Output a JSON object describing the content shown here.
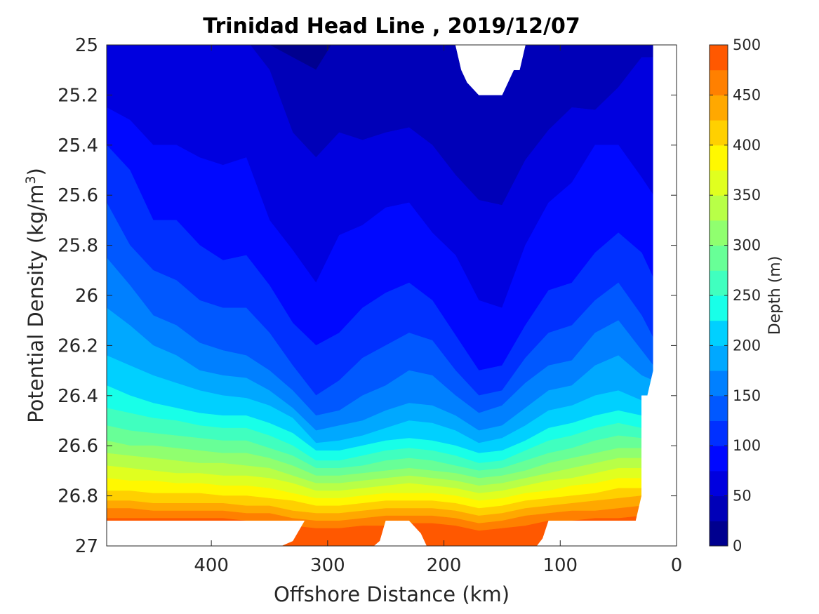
{
  "chart_data": {
    "type": "contourf",
    "title": "Trinidad Head Line , 2019/12/07",
    "xlabel": "Offshore Distance (km)",
    "ylabel": "Potential Density (kg/m",
    "ylabel_sup": "3",
    "ylabel_close": ")",
    "x_reversed": true,
    "xlim": [
      0,
      490
    ],
    "xticks": [
      400,
      300,
      200,
      100,
      0
    ],
    "xtick_labels": [
      "400",
      "300",
      "200",
      "100",
      "0"
    ],
    "y_reversed": true,
    "ylim": [
      25,
      27
    ],
    "yticks": [
      25,
      25.2,
      25.4,
      25.6,
      25.8,
      26,
      26.2,
      26.4,
      26.6,
      26.8,
      27
    ],
    "ytick_labels": [
      "25",
      "25.2",
      "25.4",
      "25.6",
      "25.8",
      "26",
      "26.2",
      "26.4",
      "26.6",
      "26.8",
      "27"
    ],
    "colorbar": {
      "label": "Depth (m)",
      "range": [
        0,
        500
      ],
      "step": 25,
      "ticks": [
        0,
        50,
        100,
        150,
        200,
        250,
        300,
        350,
        400,
        450,
        500
      ],
      "tick_labels": [
        "0",
        "50",
        "100",
        "150",
        "200",
        "250",
        "300",
        "350",
        "400",
        "450",
        "500"
      ],
      "colors": [
        "#00008f",
        "#0000b8",
        "#0000df",
        "#0008ff",
        "#0030ff",
        "#0058ff",
        "#0080ff",
        "#00a8ff",
        "#00d0ff",
        "#18ffe8",
        "#40ffbf",
        "#68ff97",
        "#90ff6f",
        "#b8ff47",
        "#e0ff1f",
        "#fff800",
        "#ffd000",
        "#ffa800",
        "#ff8000",
        "#ff5800",
        "#ff3000",
        "#ff0800",
        "#df0000",
        "#b70000"
      ]
    },
    "stations_x": [
      490,
      470,
      450,
      430,
      410,
      390,
      370,
      350,
      330,
      310,
      290,
      270,
      250,
      230,
      210,
      190,
      170,
      150,
      130,
      110,
      90,
      70,
      50,
      30,
      20
    ],
    "contours_depth": [
      25,
      50,
      75,
      100,
      125,
      150,
      175,
      200,
      225,
      250,
      275,
      300,
      325,
      350,
      375,
      400,
      425,
      450,
      475
    ],
    "contours_density": [
      [
        24.9,
        24.85,
        24.9,
        24.9,
        24.85,
        24.9,
        24.95,
        25.0,
        25.05,
        25.1,
        24.95,
        24.9,
        24.97,
        24.95,
        24.95,
        25.0,
        25.05,
        25.05,
        25.0,
        24.9,
        24.95,
        25.0,
        24.9,
        24.9,
        24.9
      ],
      [
        24.95,
        24.95,
        24.95,
        24.95,
        24.95,
        24.95,
        24.98,
        25.1,
        25.35,
        25.45,
        25.35,
        25.38,
        25.35,
        25.33,
        25.4,
        25.52,
        25.62,
        25.64,
        25.46,
        25.34,
        25.25,
        25.26,
        25.17,
        25.05,
        25.05
      ],
      [
        25.25,
        25.3,
        25.4,
        25.4,
        25.45,
        25.48,
        25.45,
        25.7,
        25.82,
        25.95,
        25.76,
        25.72,
        25.65,
        25.63,
        25.75,
        25.84,
        26.02,
        26.05,
        25.8,
        25.63,
        25.55,
        25.4,
        25.4,
        25.53,
        25.6
      ],
      [
        25.4,
        25.5,
        25.7,
        25.7,
        25.8,
        25.86,
        25.84,
        25.96,
        26.11,
        26.2,
        26.15,
        26.05,
        25.99,
        25.95,
        26.02,
        26.16,
        26.3,
        26.28,
        26.12,
        25.98,
        25.95,
        25.83,
        25.75,
        25.83,
        25.93
      ],
      [
        25.63,
        25.8,
        25.9,
        25.94,
        26.02,
        26.05,
        26.05,
        26.15,
        26.28,
        26.4,
        26.34,
        26.25,
        26.2,
        26.15,
        26.18,
        26.3,
        26.4,
        26.38,
        26.25,
        26.15,
        26.12,
        26.02,
        25.95,
        26.08,
        26.17
      ],
      [
        25.85,
        25.96,
        26.08,
        26.12,
        26.19,
        26.22,
        26.24,
        26.3,
        26.38,
        26.48,
        26.46,
        26.4,
        26.36,
        26.3,
        26.32,
        26.4,
        26.47,
        26.44,
        26.35,
        26.28,
        26.26,
        26.15,
        26.1,
        26.22,
        26.28
      ],
      [
        26.05,
        26.12,
        26.2,
        26.24,
        26.3,
        26.32,
        26.33,
        26.38,
        26.45,
        26.54,
        26.52,
        26.5,
        26.46,
        26.43,
        26.44,
        26.48,
        26.54,
        26.52,
        26.45,
        26.38,
        26.36,
        26.28,
        26.24,
        26.32,
        26.34
      ],
      [
        26.24,
        26.28,
        26.32,
        26.35,
        26.38,
        26.4,
        26.41,
        26.44,
        26.49,
        26.59,
        26.58,
        26.56,
        26.53,
        26.5,
        26.51,
        26.54,
        26.59,
        26.57,
        26.52,
        26.46,
        26.44,
        26.4,
        26.38,
        26.42,
        26.42
      ],
      [
        26.36,
        26.4,
        26.43,
        26.45,
        26.47,
        26.48,
        26.48,
        26.51,
        26.55,
        26.62,
        26.62,
        26.6,
        26.58,
        26.57,
        26.58,
        26.6,
        26.63,
        26.62,
        26.58,
        26.53,
        26.51,
        26.48,
        26.46,
        26.48,
        26.48
      ],
      [
        26.45,
        26.47,
        26.49,
        26.5,
        26.52,
        26.53,
        26.53,
        26.56,
        26.6,
        26.66,
        26.66,
        26.64,
        26.62,
        26.61,
        26.62,
        26.64,
        26.67,
        26.66,
        26.62,
        26.58,
        26.56,
        26.53,
        26.51,
        26.53,
        26.53
      ],
      [
        26.52,
        26.54,
        26.55,
        26.56,
        26.57,
        26.58,
        26.58,
        26.61,
        26.64,
        26.69,
        26.69,
        26.68,
        26.66,
        26.65,
        26.66,
        26.68,
        26.7,
        26.69,
        26.66,
        26.63,
        26.61,
        26.58,
        26.56,
        26.57,
        26.57
      ],
      [
        26.58,
        26.6,
        26.6,
        26.61,
        26.62,
        26.63,
        26.63,
        26.65,
        26.68,
        26.72,
        26.72,
        26.71,
        26.7,
        26.69,
        26.7,
        26.71,
        26.73,
        26.72,
        26.7,
        26.67,
        26.65,
        26.63,
        26.61,
        26.61,
        26.61
      ],
      [
        26.63,
        26.64,
        26.65,
        26.66,
        26.67,
        26.67,
        26.68,
        26.69,
        26.72,
        26.75,
        26.75,
        26.74,
        26.73,
        26.72,
        26.73,
        26.74,
        26.76,
        26.75,
        26.73,
        26.71,
        26.69,
        26.67,
        26.65,
        26.65,
        26.65
      ],
      [
        26.68,
        26.69,
        26.7,
        26.71,
        26.71,
        26.72,
        26.72,
        26.73,
        26.75,
        26.78,
        26.78,
        26.77,
        26.76,
        26.75,
        26.76,
        26.77,
        26.79,
        26.78,
        26.76,
        26.74,
        26.73,
        26.71,
        26.69,
        26.69,
        26.69
      ],
      [
        26.73,
        26.74,
        26.74,
        26.75,
        26.75,
        26.76,
        26.76,
        26.77,
        26.79,
        26.81,
        26.81,
        26.8,
        26.79,
        26.79,
        26.79,
        26.8,
        26.82,
        26.81,
        26.79,
        26.78,
        26.76,
        26.75,
        26.73,
        26.73,
        26.73
      ],
      [
        26.78,
        26.78,
        26.79,
        26.79,
        26.79,
        26.8,
        26.8,
        26.81,
        26.82,
        26.84,
        26.84,
        26.83,
        26.82,
        26.82,
        26.82,
        26.83,
        26.85,
        26.84,
        26.82,
        26.81,
        26.8,
        26.79,
        26.77,
        26.77,
        26.77
      ],
      [
        26.82,
        26.82,
        26.83,
        26.83,
        26.83,
        26.83,
        26.84,
        26.84,
        26.86,
        26.87,
        26.87,
        26.86,
        26.85,
        26.85,
        26.85,
        26.86,
        26.88,
        26.87,
        26.85,
        26.84,
        26.83,
        26.82,
        26.81,
        26.8,
        26.8
      ],
      [
        26.85,
        26.85,
        26.86,
        26.86,
        26.86,
        26.86,
        26.87,
        26.87,
        26.89,
        26.9,
        26.9,
        26.89,
        26.88,
        26.88,
        26.88,
        26.89,
        26.91,
        26.9,
        26.88,
        26.87,
        26.86,
        26.86,
        26.85,
        26.84,
        26.84
      ],
      [
        26.89,
        26.89,
        26.89,
        26.89,
        26.89,
        26.89,
        26.9,
        26.9,
        26.92,
        26.93,
        26.93,
        26.92,
        26.92,
        26.91,
        26.91,
        26.92,
        26.94,
        26.93,
        26.92,
        26.9,
        26.9,
        26.89,
        26.89,
        26.88,
        26.88
      ]
    ],
    "no_data_regions": [
      {
        "where": "top",
        "x": [
          190,
          185,
          180,
          170,
          150,
          140,
          135,
          130
        ],
        "y": [
          25,
          25.1,
          25.15,
          25.2,
          25.2,
          25.1,
          25.1,
          25
        ]
      },
      {
        "where": "right",
        "x": [
          20,
          20,
          25,
          30,
          30,
          35,
          40,
          35,
          0,
          0
        ],
        "y": [
          25,
          26.3,
          26.4,
          26.4,
          26.8,
          26.9,
          26.9,
          26.9,
          26.9,
          25
        ]
      },
      {
        "where": "bottom",
        "x": [
          490,
          490,
          340,
          330,
          320,
          325,
          340,
          490
        ],
        "y": [
          26.9,
          27,
          27,
          26.98,
          26.9,
          26.9,
          26.9,
          26.9
        ]
      },
      {
        "where": "bottom",
        "x": [
          260,
          255,
          250,
          240,
          230,
          220,
          215,
          210,
          220,
          230,
          240,
          250,
          260
        ],
        "y": [
          27,
          26.98,
          26.9,
          26.9,
          26.9,
          26.95,
          27,
          27,
          27,
          27,
          27,
          27,
          27
        ]
      },
      {
        "where": "bottom",
        "x": [
          120,
          115,
          110,
          95,
          70,
          50,
          40,
          38,
          30,
          0,
          0,
          120
        ],
        "y": [
          27,
          26.97,
          26.9,
          26.9,
          26.9,
          26.9,
          26.9,
          26.9,
          26.9,
          26.9,
          27,
          27
        ]
      }
    ]
  }
}
